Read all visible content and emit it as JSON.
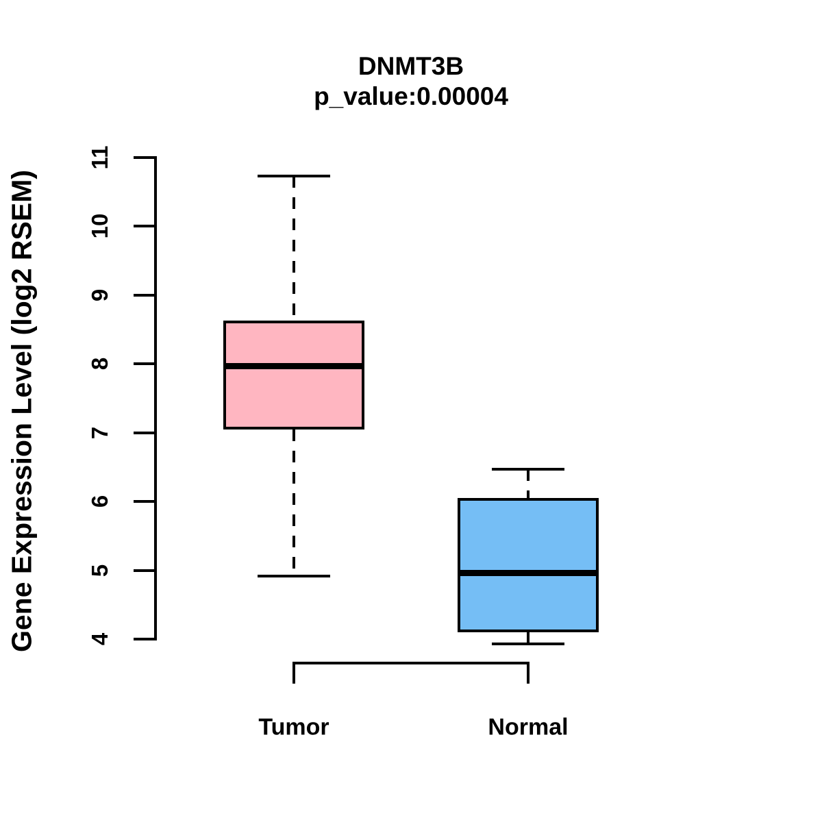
{
  "chart_data": {
    "type": "boxplot",
    "title": "DNMT3B",
    "subtitle": "p_value:0.00004",
    "ylabel": "Gene Expression Level (log2 RSEM)",
    "xlabel": "",
    "ylim": [
      4,
      11
    ],
    "yticks": [
      4,
      5,
      6,
      7,
      8,
      9,
      10,
      11
    ],
    "grid": false,
    "legend": "none",
    "line_color": "#000000",
    "background_color": "#FFFFFF",
    "groups": [
      {
        "label": "Tumor",
        "color": "#FFB6C1",
        "lower_whisker": 4.92,
        "q1": 7.05,
        "median": 7.97,
        "q3": 8.63,
        "upper_whisker": 10.73
      },
      {
        "label": "Normal",
        "color": "#75BEF5",
        "lower_whisker": 3.93,
        "q1": 4.1,
        "median": 4.96,
        "q3": 6.05,
        "upper_whisker": 6.47
      }
    ]
  }
}
